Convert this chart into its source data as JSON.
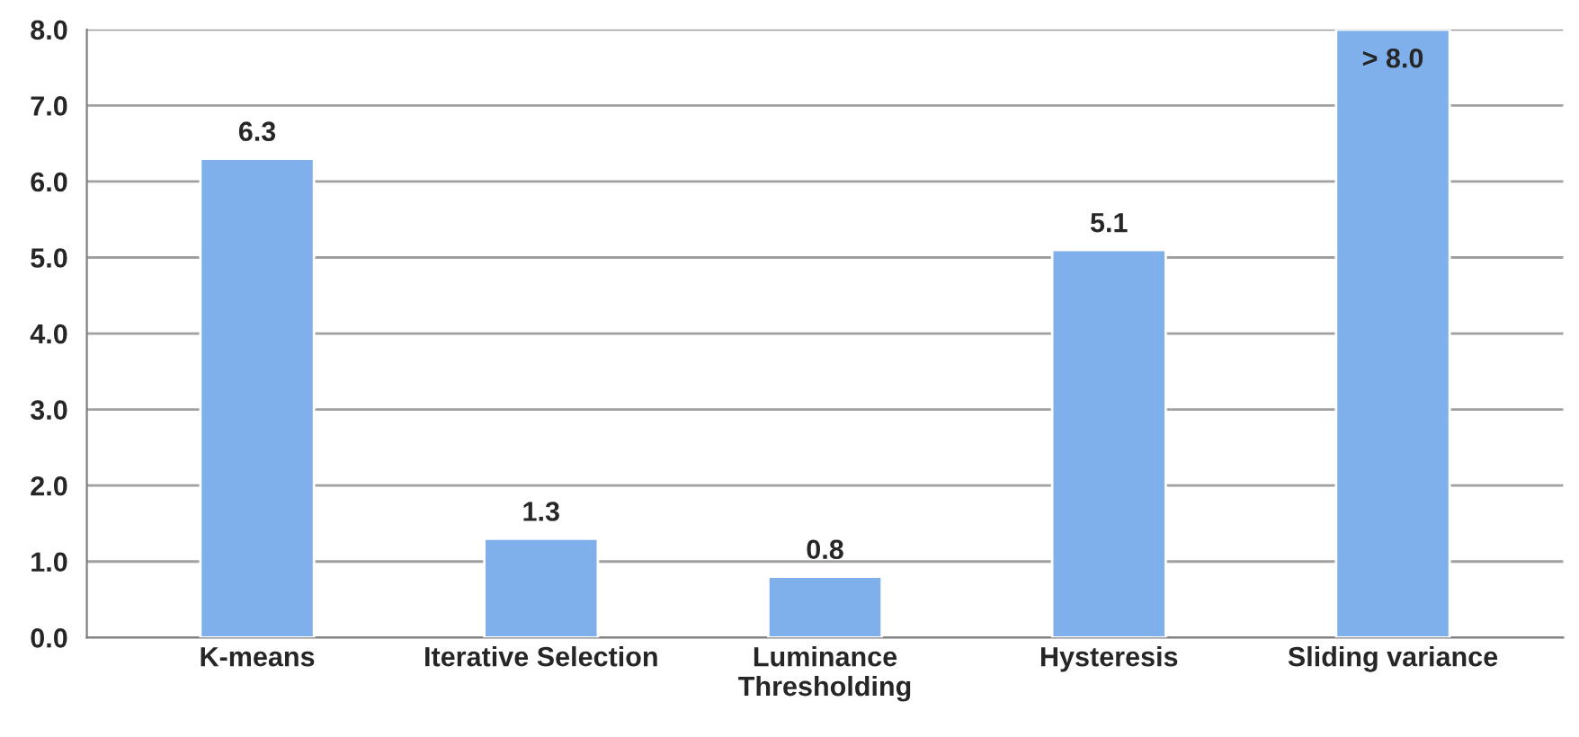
{
  "chart_data": {
    "type": "bar",
    "categories": [
      "K-means",
      "Iterative Selection",
      "Luminance\nThresholding",
      "Hysteresis",
      "Sliding variance"
    ],
    "values": [
      6.3,
      1.3,
      0.8,
      5.1,
      8.0
    ],
    "value_labels": [
      "6.3",
      "1.3",
      "0.8",
      "5.1",
      "> 8.0"
    ],
    "color": "#7fb0ec",
    "ylim": [
      0,
      8
    ],
    "yticks": [
      {
        "value": 0,
        "label": "0.0"
      },
      {
        "value": 1,
        "label": "1.0"
      },
      {
        "value": 2,
        "label": "2.0"
      },
      {
        "value": 3,
        "label": "3.0"
      },
      {
        "value": 4,
        "label": "4.0"
      },
      {
        "value": 5,
        "label": "5.0"
      },
      {
        "value": 6,
        "label": "6.0"
      },
      {
        "value": 7,
        "label": "7.0"
      },
      {
        "value": 8,
        "label": "8.0"
      }
    ],
    "grid": "y",
    "legend": false
  }
}
